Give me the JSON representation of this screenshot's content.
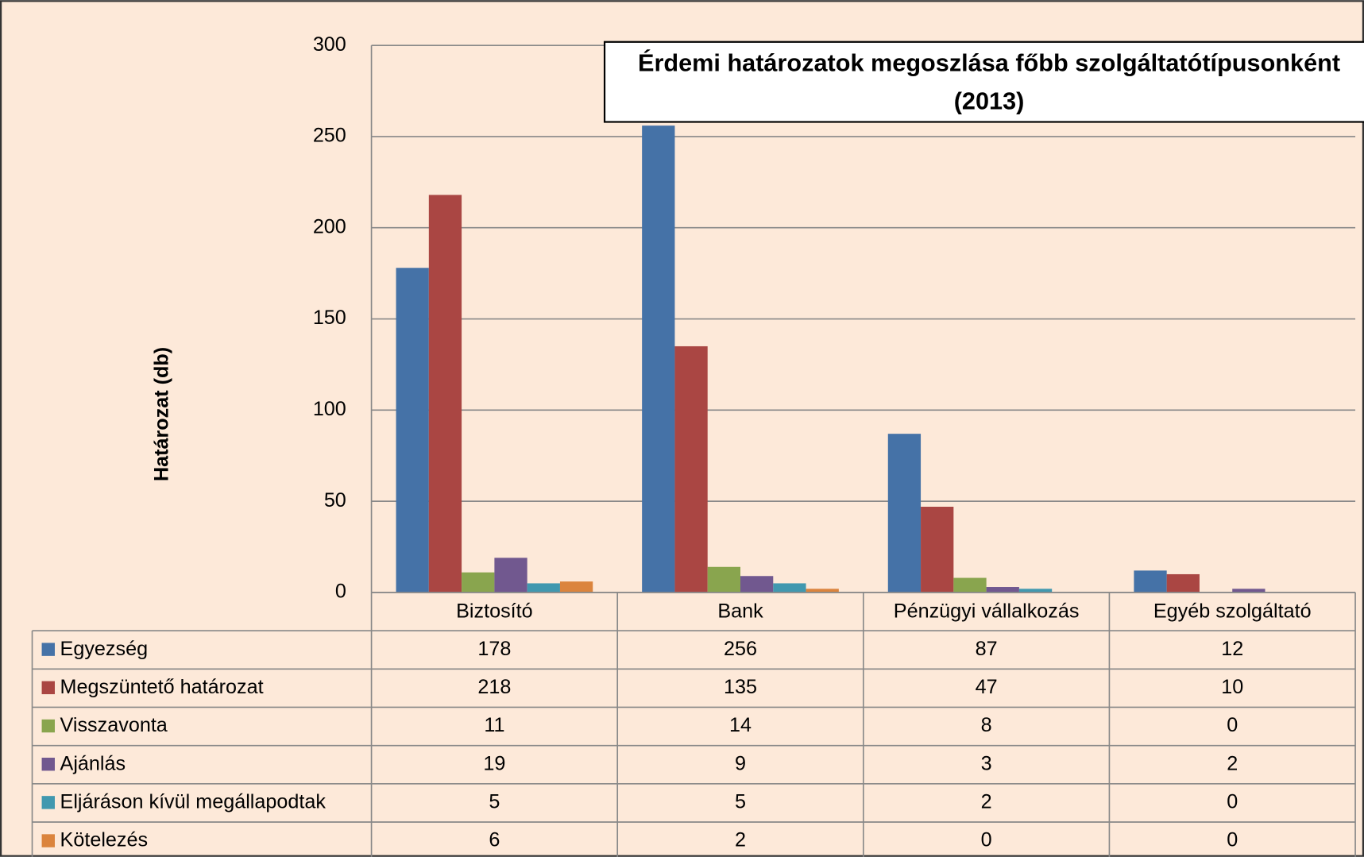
{
  "chart_data": {
    "type": "bar",
    "title_lines": [
      "Érdemi határozatok megoszlása főbb szolgáltatótípusonként",
      "(2013)"
    ],
    "y_label": "Határozat (db)",
    "categories": [
      "Biztosító",
      "Bank",
      "Pénzügyi vállalkozás",
      "Egyéb szolgáltató"
    ],
    "series": [
      {
        "name": "Egyezség",
        "color": "#4572a7",
        "values": [
          178,
          256,
          87,
          12
        ]
      },
      {
        "name": "Megszüntető határozat",
        "color": "#aa4643",
        "values": [
          218,
          135,
          47,
          10
        ]
      },
      {
        "name": "Visszavonta",
        "color": "#89a54e",
        "values": [
          11,
          14,
          8,
          0
        ]
      },
      {
        "name": "Ajánlás",
        "color": "#71588f",
        "values": [
          19,
          9,
          3,
          2
        ]
      },
      {
        "name": "Eljáráson kívül megállapodtak",
        "color": "#4198af",
        "values": [
          5,
          5,
          2,
          0
        ]
      },
      {
        "name": "Kötelezés",
        "color": "#db843d",
        "values": [
          6,
          2,
          0,
          0
        ]
      }
    ],
    "ylim": [
      0,
      300
    ],
    "yticks": [
      0,
      50,
      100,
      150,
      200,
      250,
      300
    ],
    "grid": true
  }
}
